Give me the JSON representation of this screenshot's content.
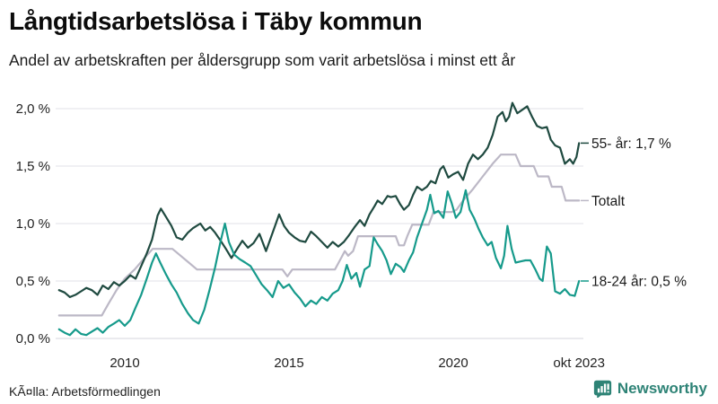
{
  "header": {
    "title": "Långtidsarbetslösa i Täby kommun",
    "subtitle": "Andel av arbetskraften per åldersgrupp som varit arbetslösa i minst ett år"
  },
  "footer": {
    "source": "KÃ¤lla: Arbetsförmedlingen",
    "brand": "Newsworthy"
  },
  "colors": {
    "series_55": "#1f4a40",
    "series_total": "#bcb8c6",
    "series_young": "#169a8b",
    "grid": "#e1e1e7",
    "axis_text": "#222222",
    "brand_teal": "#2e8376"
  },
  "chart_data": {
    "type": "line",
    "title": "Långtidsarbetslösa i Täby kommun",
    "subtitle": "Andel av arbetskraften per åldersgrupp som varit arbetslösa i minst ett år",
    "xlabel": "",
    "ylabel": "",
    "xlim": [
      2008.0,
      2023.83
    ],
    "ylim": [
      0,
      2.2
    ],
    "grid": true,
    "legend_position": "right-end-labels",
    "y_ticks": [
      {
        "value": 0.0,
        "label": "0,0 %"
      },
      {
        "value": 0.5,
        "label": "0,5 %"
      },
      {
        "value": 1.0,
        "label": "1,0 %"
      },
      {
        "value": 1.5,
        "label": "1,5 %"
      },
      {
        "value": 2.0,
        "label": "2,0 %"
      }
    ],
    "x_ticks": [
      {
        "value": 2010,
        "label": "2010"
      },
      {
        "value": 2015,
        "label": "2015"
      },
      {
        "value": 2020,
        "label": "2020"
      },
      {
        "value": 2023.83,
        "label": "okt 2023"
      }
    ],
    "series": [
      {
        "name": "Totalt",
        "end_label": "Totalt",
        "end_value_label": "1,2 %",
        "color": "#bcb8c6",
        "points": [
          [
            2008.0,
            0.2
          ],
          [
            2009.3,
            0.2
          ],
          [
            2009.5,
            0.3
          ],
          [
            2009.75,
            0.42
          ],
          [
            2010.0,
            0.52
          ],
          [
            2010.3,
            0.6
          ],
          [
            2010.6,
            0.7
          ],
          [
            2010.85,
            0.78
          ],
          [
            2011.45,
            0.78
          ],
          [
            2011.7,
            0.72
          ],
          [
            2011.95,
            0.66
          ],
          [
            2012.2,
            0.6
          ],
          [
            2014.8,
            0.6
          ],
          [
            2014.95,
            0.54
          ],
          [
            2015.1,
            0.6
          ],
          [
            2016.4,
            0.6
          ],
          [
            2016.55,
            0.68
          ],
          [
            2016.7,
            0.76
          ],
          [
            2016.8,
            0.72
          ],
          [
            2016.95,
            0.76
          ],
          [
            2017.1,
            0.89
          ],
          [
            2018.25,
            0.89
          ],
          [
            2018.35,
            0.81
          ],
          [
            2018.5,
            0.81
          ],
          [
            2018.6,
            0.89
          ],
          [
            2018.75,
            0.99
          ],
          [
            2019.25,
            0.99
          ],
          [
            2019.4,
            1.1
          ],
          [
            2019.95,
            1.1
          ],
          [
            2020.1,
            1.12
          ],
          [
            2020.3,
            1.2
          ],
          [
            2020.6,
            1.3
          ],
          [
            2020.9,
            1.41
          ],
          [
            2021.2,
            1.52
          ],
          [
            2021.45,
            1.6
          ],
          [
            2021.9,
            1.6
          ],
          [
            2022.05,
            1.5
          ],
          [
            2022.45,
            1.5
          ],
          [
            2022.58,
            1.41
          ],
          [
            2022.9,
            1.41
          ],
          [
            2023.0,
            1.32
          ],
          [
            2023.3,
            1.32
          ],
          [
            2023.42,
            1.2
          ],
          [
            2023.83,
            1.2
          ]
        ]
      },
      {
        "name": "55- år",
        "end_label": "55- år: 1,7 %",
        "end_value_label": "1,7 %",
        "color": "#1f4a40",
        "points": [
          [
            2008.0,
            0.42
          ],
          [
            2008.17,
            0.4
          ],
          [
            2008.33,
            0.36
          ],
          [
            2008.5,
            0.38
          ],
          [
            2008.67,
            0.41
          ],
          [
            2008.83,
            0.44
          ],
          [
            2009.0,
            0.42
          ],
          [
            2009.17,
            0.38
          ],
          [
            2009.33,
            0.46
          ],
          [
            2009.5,
            0.43
          ],
          [
            2009.67,
            0.49
          ],
          [
            2009.83,
            0.46
          ],
          [
            2010.0,
            0.5
          ],
          [
            2010.17,
            0.55
          ],
          [
            2010.33,
            0.52
          ],
          [
            2010.5,
            0.63
          ],
          [
            2010.67,
            0.74
          ],
          [
            2010.83,
            0.86
          ],
          [
            2011.0,
            1.07
          ],
          [
            2011.1,
            1.13
          ],
          [
            2011.25,
            1.06
          ],
          [
            2011.42,
            0.98
          ],
          [
            2011.58,
            0.88
          ],
          [
            2011.75,
            0.86
          ],
          [
            2011.92,
            0.92
          ],
          [
            2012.08,
            0.96
          ],
          [
            2012.3,
            1.0
          ],
          [
            2012.45,
            0.94
          ],
          [
            2012.6,
            0.97
          ],
          [
            2012.75,
            0.92
          ],
          [
            2012.92,
            0.85
          ],
          [
            2013.08,
            0.78
          ],
          [
            2013.25,
            0.7
          ],
          [
            2013.42,
            0.78
          ],
          [
            2013.58,
            0.85
          ],
          [
            2013.75,
            0.79
          ],
          [
            2013.92,
            0.83
          ],
          [
            2014.1,
            0.91
          ],
          [
            2014.3,
            0.76
          ],
          [
            2014.45,
            0.88
          ],
          [
            2014.6,
            1.0
          ],
          [
            2014.7,
            1.08
          ],
          [
            2014.85,
            0.98
          ],
          [
            2015.0,
            0.92
          ],
          [
            2015.17,
            0.88
          ],
          [
            2015.33,
            0.85
          ],
          [
            2015.5,
            0.84
          ],
          [
            2015.67,
            0.93
          ],
          [
            2015.83,
            0.89
          ],
          [
            2016.0,
            0.84
          ],
          [
            2016.17,
            0.79
          ],
          [
            2016.33,
            0.84
          ],
          [
            2016.5,
            0.8
          ],
          [
            2016.67,
            0.84
          ],
          [
            2016.83,
            0.9
          ],
          [
            2017.0,
            0.97
          ],
          [
            2017.16,
            1.03
          ],
          [
            2017.3,
            0.98
          ],
          [
            2017.45,
            1.08
          ],
          [
            2017.6,
            1.15
          ],
          [
            2017.7,
            1.2
          ],
          [
            2017.84,
            1.17
          ],
          [
            2018.0,
            1.24
          ],
          [
            2018.1,
            1.23
          ],
          [
            2018.25,
            1.24
          ],
          [
            2018.38,
            1.17
          ],
          [
            2018.5,
            1.12
          ],
          [
            2018.65,
            1.16
          ],
          [
            2018.78,
            1.25
          ],
          [
            2018.9,
            1.32
          ],
          [
            2019.05,
            1.29
          ],
          [
            2019.2,
            1.32
          ],
          [
            2019.32,
            1.37
          ],
          [
            2019.46,
            1.35
          ],
          [
            2019.6,
            1.47
          ],
          [
            2019.7,
            1.5
          ],
          [
            2019.85,
            1.4
          ],
          [
            2020.0,
            1.43
          ],
          [
            2020.15,
            1.45
          ],
          [
            2020.3,
            1.38
          ],
          [
            2020.45,
            1.52
          ],
          [
            2020.6,
            1.6
          ],
          [
            2020.75,
            1.56
          ],
          [
            2020.9,
            1.6
          ],
          [
            2021.05,
            1.66
          ],
          [
            2021.2,
            1.77
          ],
          [
            2021.35,
            1.93
          ],
          [
            2021.5,
            1.97
          ],
          [
            2021.6,
            1.89
          ],
          [
            2021.7,
            1.93
          ],
          [
            2021.8,
            2.05
          ],
          [
            2021.95,
            1.96
          ],
          [
            2022.1,
            1.99
          ],
          [
            2022.25,
            2.02
          ],
          [
            2022.4,
            1.93
          ],
          [
            2022.55,
            1.85
          ],
          [
            2022.7,
            1.83
          ],
          [
            2022.85,
            1.84
          ],
          [
            2022.97,
            1.73
          ],
          [
            2023.1,
            1.68
          ],
          [
            2023.25,
            1.66
          ],
          [
            2023.4,
            1.52
          ],
          [
            2023.55,
            1.56
          ],
          [
            2023.65,
            1.52
          ],
          [
            2023.75,
            1.58
          ],
          [
            2023.83,
            1.7
          ]
        ]
      },
      {
        "name": "18-24 år",
        "end_label": "18-24 år: 0,5 %",
        "end_value_label": "0,5 %",
        "color": "#169a8b",
        "points": [
          [
            2008.0,
            0.08
          ],
          [
            2008.17,
            0.05
          ],
          [
            2008.33,
            0.03
          ],
          [
            2008.5,
            0.08
          ],
          [
            2008.67,
            0.04
          ],
          [
            2008.83,
            0.03
          ],
          [
            2009.0,
            0.06
          ],
          [
            2009.17,
            0.09
          ],
          [
            2009.33,
            0.05
          ],
          [
            2009.5,
            0.1
          ],
          [
            2009.67,
            0.13
          ],
          [
            2009.83,
            0.16
          ],
          [
            2010.0,
            0.11
          ],
          [
            2010.17,
            0.16
          ],
          [
            2010.33,
            0.27
          ],
          [
            2010.5,
            0.38
          ],
          [
            2010.67,
            0.52
          ],
          [
            2010.83,
            0.66
          ],
          [
            2010.95,
            0.74
          ],
          [
            2011.08,
            0.66
          ],
          [
            2011.25,
            0.56
          ],
          [
            2011.42,
            0.47
          ],
          [
            2011.58,
            0.4
          ],
          [
            2011.75,
            0.3
          ],
          [
            2011.92,
            0.22
          ],
          [
            2012.08,
            0.16
          ],
          [
            2012.25,
            0.13
          ],
          [
            2012.42,
            0.25
          ],
          [
            2012.58,
            0.42
          ],
          [
            2012.75,
            0.62
          ],
          [
            2012.92,
            0.85
          ],
          [
            2013.05,
            1.0
          ],
          [
            2013.17,
            0.84
          ],
          [
            2013.33,
            0.73
          ],
          [
            2013.5,
            0.69
          ],
          [
            2013.67,
            0.66
          ],
          [
            2013.83,
            0.63
          ],
          [
            2014.0,
            0.55
          ],
          [
            2014.17,
            0.47
          ],
          [
            2014.33,
            0.42
          ],
          [
            2014.5,
            0.36
          ],
          [
            2014.67,
            0.5
          ],
          [
            2014.83,
            0.44
          ],
          [
            2015.0,
            0.47
          ],
          [
            2015.17,
            0.4
          ],
          [
            2015.33,
            0.35
          ],
          [
            2015.5,
            0.28
          ],
          [
            2015.67,
            0.33
          ],
          [
            2015.83,
            0.3
          ],
          [
            2016.0,
            0.36
          ],
          [
            2016.17,
            0.33
          ],
          [
            2016.33,
            0.39
          ],
          [
            2016.5,
            0.42
          ],
          [
            2016.63,
            0.5
          ],
          [
            2016.76,
            0.64
          ],
          [
            2016.9,
            0.52
          ],
          [
            2017.05,
            0.57
          ],
          [
            2017.16,
            0.45
          ],
          [
            2017.3,
            0.6
          ],
          [
            2017.45,
            0.63
          ],
          [
            2017.58,
            0.88
          ],
          [
            2017.7,
            0.82
          ],
          [
            2017.84,
            0.76
          ],
          [
            2017.97,
            0.68
          ],
          [
            2018.1,
            0.56
          ],
          [
            2018.25,
            0.65
          ],
          [
            2018.4,
            0.62
          ],
          [
            2018.5,
            0.58
          ],
          [
            2018.65,
            0.68
          ],
          [
            2018.78,
            0.75
          ],
          [
            2018.9,
            0.88
          ],
          [
            2019.05,
            1.0
          ],
          [
            2019.2,
            1.12
          ],
          [
            2019.3,
            1.25
          ],
          [
            2019.42,
            1.09
          ],
          [
            2019.55,
            1.11
          ],
          [
            2019.7,
            1.05
          ],
          [
            2019.83,
            1.28
          ],
          [
            2019.95,
            1.18
          ],
          [
            2020.08,
            1.05
          ],
          [
            2020.22,
            1.1
          ],
          [
            2020.38,
            1.29
          ],
          [
            2020.5,
            1.12
          ],
          [
            2020.63,
            1.05
          ],
          [
            2020.78,
            0.95
          ],
          [
            2020.9,
            0.88
          ],
          [
            2021.05,
            0.81
          ],
          [
            2021.17,
            0.84
          ],
          [
            2021.3,
            0.7
          ],
          [
            2021.45,
            0.61
          ],
          [
            2021.55,
            0.72
          ],
          [
            2021.65,
            0.98
          ],
          [
            2021.78,
            0.78
          ],
          [
            2021.9,
            0.66
          ],
          [
            2022.05,
            0.67
          ],
          [
            2022.2,
            0.68
          ],
          [
            2022.35,
            0.68
          ],
          [
            2022.5,
            0.6
          ],
          [
            2022.63,
            0.52
          ],
          [
            2022.72,
            0.5
          ],
          [
            2022.85,
            0.8
          ],
          [
            2022.97,
            0.74
          ],
          [
            2023.1,
            0.41
          ],
          [
            2023.25,
            0.39
          ],
          [
            2023.4,
            0.43
          ],
          [
            2023.55,
            0.38
          ],
          [
            2023.7,
            0.37
          ],
          [
            2023.83,
            0.5
          ]
        ]
      }
    ]
  }
}
